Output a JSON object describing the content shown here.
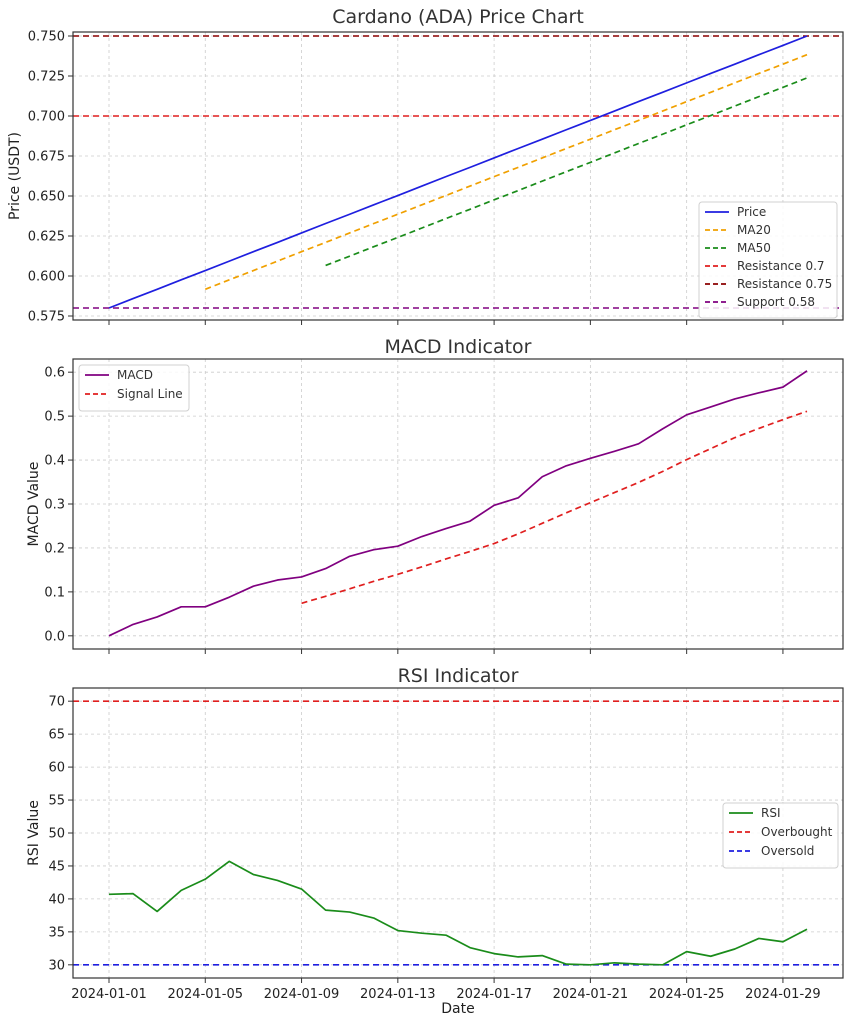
{
  "colors": {
    "price": "#1f1fdf",
    "ma20": "#f0a000",
    "ma50": "#1a8c1a",
    "resistance_07": "#e01f1f",
    "resistance_075": "#8b0000",
    "support": "#800080",
    "macd": "#800080",
    "signal": "#e01f1f",
    "rsi": "#1a8c1a",
    "overbought": "#e01f1f",
    "oversold": "#1f1fdf"
  },
  "x_axis": {
    "label": "Date",
    "dates": [
      "2024-01-01",
      "2024-01-02",
      "2024-01-03",
      "2024-01-04",
      "2024-01-05",
      "2024-01-06",
      "2024-01-07",
      "2024-01-08",
      "2024-01-09",
      "2024-01-10",
      "2024-01-11",
      "2024-01-12",
      "2024-01-13",
      "2024-01-14",
      "2024-01-15",
      "2024-01-16",
      "2024-01-17",
      "2024-01-18",
      "2024-01-19",
      "2024-01-20",
      "2024-01-21",
      "2024-01-22",
      "2024-01-23",
      "2024-01-24",
      "2024-01-25",
      "2024-01-26",
      "2024-01-27",
      "2024-01-28",
      "2024-01-29",
      "2024-01-30"
    ],
    "tick_labels": [
      "2024-01-01",
      "2024-01-05",
      "2024-01-09",
      "2024-01-13",
      "2024-01-17",
      "2024-01-21",
      "2024-01-25",
      "2024-01-29"
    ],
    "tick_indices": [
      0,
      4,
      8,
      12,
      16,
      20,
      24,
      28
    ]
  },
  "chart_data": [
    {
      "type": "line",
      "title": "Cardano (ADA) Price Chart",
      "ylabel": "Price (USDT)",
      "ylim": [
        0.5725,
        0.7525
      ],
      "yticks": [
        "0.575",
        "0.600",
        "0.625",
        "0.650",
        "0.675",
        "0.700",
        "0.725",
        "0.750"
      ],
      "yticks_values": [
        0.575,
        0.6,
        0.625,
        0.65,
        0.675,
        0.7,
        0.725,
        0.75
      ],
      "grid": true,
      "legend_position": "lower-right",
      "series": [
        {
          "name": "Price",
          "style": "solid",
          "start_index": 0,
          "values": [
            0.58,
            0.5859,
            0.5917,
            0.5976,
            0.6034,
            0.6093,
            0.6152,
            0.621,
            0.6269,
            0.6328,
            0.6386,
            0.6445,
            0.6503,
            0.6562,
            0.6621,
            0.6679,
            0.6738,
            0.6797,
            0.6855,
            0.6914,
            0.6972,
            0.7031,
            0.709,
            0.7148,
            0.7207,
            0.7266,
            0.7324,
            0.7383,
            0.7441,
            0.75
          ]
        },
        {
          "name": "MA20",
          "style": "dashed",
          "start_index": 4,
          "values": [
            0.5917,
            0.5976,
            0.6034,
            0.6093,
            0.6152,
            0.621,
            0.6269,
            0.6328,
            0.6386,
            0.6445,
            0.6503,
            0.6562,
            0.6621,
            0.6679,
            0.6738,
            0.6797,
            0.6855,
            0.6914,
            0.6972,
            0.7031,
            0.709,
            0.7148,
            0.7207,
            0.7266,
            0.7324,
            0.7383
          ]
        },
        {
          "name": "MA50",
          "style": "dashed",
          "start_index": 9,
          "values": [
            0.6066,
            0.6124,
            0.6183,
            0.6241,
            0.63,
            0.6359,
            0.6417,
            0.6476,
            0.6534,
            0.6593,
            0.6652,
            0.671,
            0.6769,
            0.6828,
            0.6886,
            0.6945,
            0.7003,
            0.7062,
            0.7121,
            0.7179,
            0.7238
          ]
        }
      ],
      "hlines": [
        {
          "name": "Resistance 0.7",
          "value": 0.7,
          "color_key": "resistance_07"
        },
        {
          "name": "Resistance 0.75",
          "value": 0.75,
          "color_key": "resistance_075"
        },
        {
          "name": "Support 0.58",
          "value": 0.58,
          "color_key": "support"
        }
      ]
    },
    {
      "type": "line",
      "title": "MACD Indicator",
      "ylabel": "MACD Value",
      "ylim": [
        -0.03,
        0.63
      ],
      "yticks": [
        "0.0",
        "0.1",
        "0.2",
        "0.3",
        "0.4",
        "0.5",
        "0.6"
      ],
      "yticks_values": [
        0,
        0.1,
        0.2,
        0.3,
        0.4,
        0.5,
        0.6
      ],
      "grid": true,
      "legend_position": "top-left",
      "series": [
        {
          "name": "MACD",
          "style": "solid",
          "start_index": 0,
          "values": [
            0.0,
            0.026,
            0.043,
            0.066,
            0.066,
            0.088,
            0.113,
            0.127,
            0.134,
            0.153,
            0.181,
            0.196,
            0.204,
            0.226,
            0.244,
            0.261,
            0.297,
            0.314,
            0.362,
            0.387,
            0.404,
            0.42,
            0.437,
            0.471,
            0.503,
            0.521,
            0.539,
            0.553,
            0.566,
            0.603
          ]
        },
        {
          "name": "Signal Line",
          "style": "dashed",
          "start_index": 8,
          "values": [
            0.074,
            0.09,
            0.107,
            0.124,
            0.14,
            0.157,
            0.175,
            0.192,
            0.21,
            0.232,
            0.256,
            0.28,
            0.303,
            0.326,
            0.349,
            0.374,
            0.401,
            0.426,
            0.451,
            0.472,
            0.492,
            0.511
          ]
        }
      ]
    },
    {
      "type": "line",
      "title": "RSI Indicator",
      "ylabel": "RSI Value",
      "ylim": [
        28,
        72
      ],
      "yticks": [
        "30",
        "35",
        "40",
        "45",
        "50",
        "55",
        "60",
        "65",
        "70"
      ],
      "yticks_values": [
        30,
        35,
        40,
        45,
        50,
        55,
        60,
        65,
        70
      ],
      "grid": true,
      "legend_position": "right",
      "series": [
        {
          "name": "RSI",
          "style": "solid",
          "start_index": 0,
          "values": [
            40.7,
            40.8,
            38.1,
            41.3,
            43.0,
            45.7,
            43.7,
            42.8,
            41.5,
            38.3,
            38.0,
            37.1,
            35.2,
            34.8,
            34.5,
            32.6,
            31.7,
            31.2,
            31.4,
            30.1,
            30.0,
            30.3,
            30.1,
            30.0,
            32.0,
            31.3,
            32.4,
            34.0,
            33.5,
            35.4
          ]
        }
      ],
      "hlines": [
        {
          "name": "Overbought",
          "value": 70,
          "color_key": "overbought"
        },
        {
          "name": "Oversold",
          "value": 30,
          "color_key": "oversold"
        }
      ]
    }
  ]
}
